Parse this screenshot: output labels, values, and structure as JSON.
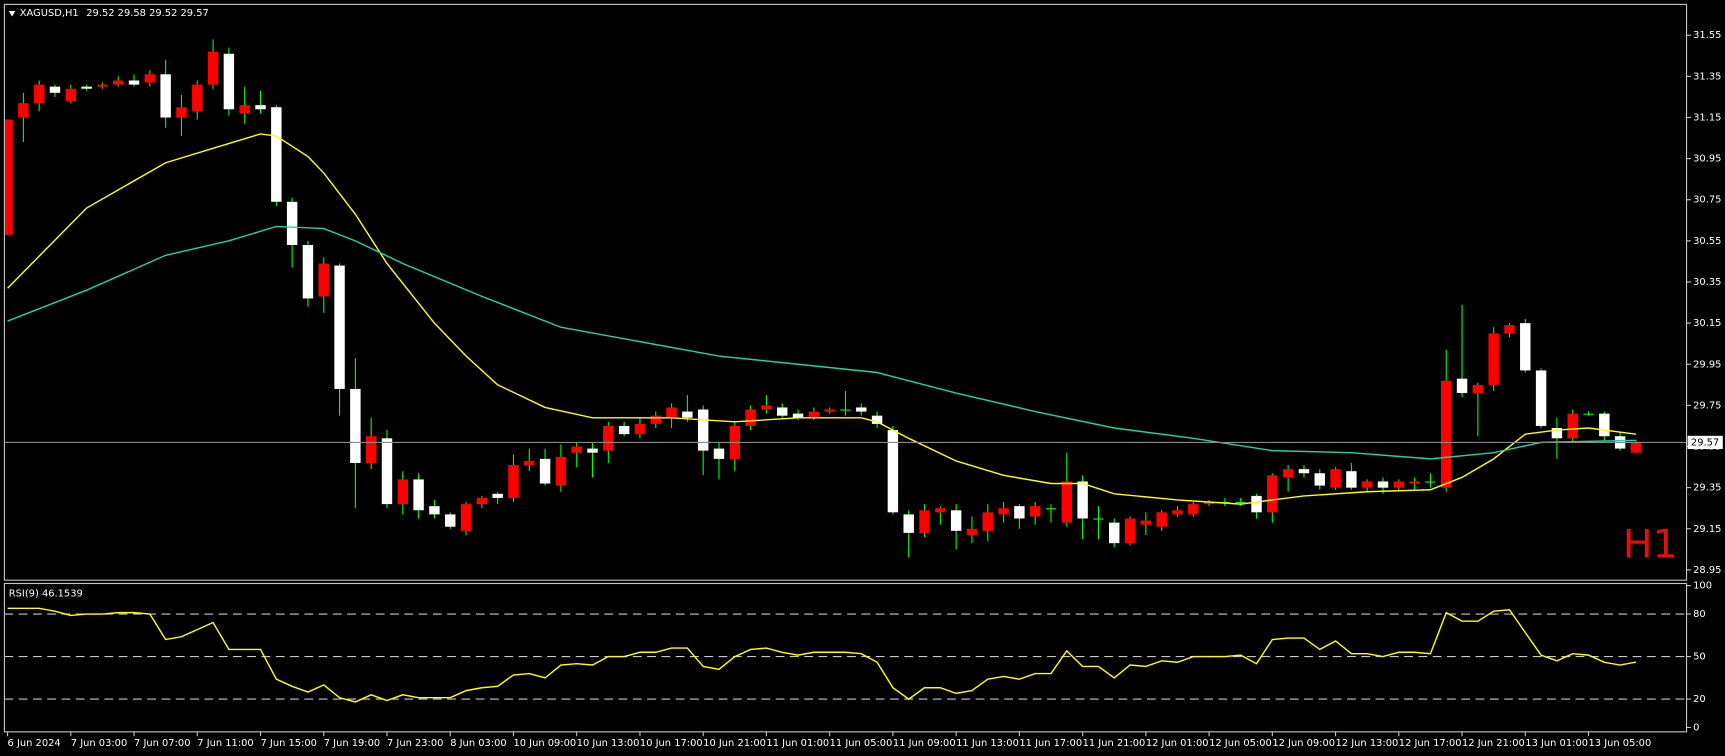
{
  "chart_data": {
    "type": "candlestick",
    "symbol": "XAGUSD,H1",
    "timeframe": "H1",
    "up_color": "#ff0000",
    "down_color": "#ffffff",
    "doji_color": "#00ff00",
    "wick_color": "#00ff00",
    "ylim": [
      28.9,
      31.7
    ],
    "yticks": [
      28.95,
      29.15,
      29.35,
      29.55,
      29.75,
      29.95,
      30.15,
      30.35,
      30.55,
      30.75,
      30.95,
      31.15,
      31.35,
      31.55
    ],
    "xlim": [
      -0.2,
      106.2
    ],
    "xticks": [
      {
        "value": 0,
        "label": "6 Jun 2024"
      },
      {
        "value": 4,
        "label": "7 Jun 03:00"
      },
      {
        "value": 8,
        "label": "7 Jun 07:00"
      },
      {
        "value": 12,
        "label": "7 Jun 11:00"
      },
      {
        "value": 16,
        "label": "7 Jun 15:00"
      },
      {
        "value": 20,
        "label": "7 Jun 19:00"
      },
      {
        "value": 24,
        "label": "7 Jun 23:00"
      },
      {
        "value": 28,
        "label": "8 Jun 03:00"
      },
      {
        "value": 32,
        "label": "10 Jun 09:00"
      },
      {
        "value": 36,
        "label": "10 Jun 13:00"
      },
      {
        "value": 40,
        "label": "10 Jun 17:00"
      },
      {
        "value": 44,
        "label": "10 Jun 21:00"
      },
      {
        "value": 48,
        "label": "11 Jun 01:00"
      },
      {
        "value": 52,
        "label": "11 Jun 05:00"
      },
      {
        "value": 56,
        "label": "11 Jun 09:00"
      },
      {
        "value": 60,
        "label": "11 Jun 13:00"
      },
      {
        "value": 64,
        "label": "11 Jun 17:00"
      },
      {
        "value": 68,
        "label": "11 Jun 21:00"
      },
      {
        "value": 72,
        "label": "12 Jun 01:00"
      },
      {
        "value": 76,
        "label": "12 Jun 05:00"
      },
      {
        "value": 80,
        "label": "12 Jun 09:00"
      },
      {
        "value": 84,
        "label": "12 Jun 13:00"
      },
      {
        "value": 88,
        "label": "12 Jun 17:00"
      },
      {
        "value": 92,
        "label": "12 Jun 21:00"
      },
      {
        "value": 96,
        "label": "13 Jun 01:00"
      },
      {
        "value": 100,
        "label": "13 Jun 05:00"
      }
    ],
    "ohlc": [
      [
        30.58,
        31.14,
        30.58,
        31.14
      ],
      [
        31.15,
        31.27,
        31.03,
        31.22
      ],
      [
        31.22,
        31.33,
        31.18,
        31.31
      ],
      [
        31.3,
        31.31,
        31.25,
        31.27
      ],
      [
        31.23,
        31.31,
        31.22,
        31.29
      ],
      [
        31.3,
        31.31,
        31.28,
        31.29
      ],
      [
        31.3,
        31.32,
        31.29,
        31.31
      ],
      [
        31.31,
        31.35,
        31.3,
        31.33
      ],
      [
        31.33,
        31.36,
        31.3,
        31.31
      ],
      [
        31.32,
        31.38,
        31.3,
        31.36
      ],
      [
        31.36,
        31.43,
        31.1,
        31.15
      ],
      [
        31.15,
        31.26,
        31.06,
        31.2
      ],
      [
        31.18,
        31.33,
        31.14,
        31.31
      ],
      [
        31.31,
        31.53,
        31.29,
        31.47
      ],
      [
        31.46,
        31.49,
        31.16,
        31.19
      ],
      [
        31.17,
        31.3,
        31.12,
        31.21
      ],
      [
        31.21,
        31.28,
        31.17,
        31.19
      ],
      [
        31.2,
        31.21,
        30.72,
        30.74
      ],
      [
        30.74,
        30.76,
        30.42,
        30.53
      ],
      [
        30.53,
        30.55,
        30.23,
        30.27
      ],
      [
        30.28,
        30.47,
        30.2,
        30.44
      ],
      [
        30.43,
        30.44,
        29.7,
        29.83
      ],
      [
        29.83,
        29.98,
        29.25,
        29.47
      ],
      [
        29.47,
        29.69,
        29.44,
        29.6
      ],
      [
        29.59,
        29.63,
        29.25,
        29.27
      ],
      [
        29.27,
        29.43,
        29.22,
        29.39
      ],
      [
        29.39,
        29.42,
        29.2,
        29.24
      ],
      [
        29.26,
        29.29,
        29.2,
        29.22
      ],
      [
        29.22,
        29.23,
        29.15,
        29.16
      ],
      [
        29.14,
        29.28,
        29.12,
        29.27
      ],
      [
        29.27,
        29.31,
        29.25,
        29.3
      ],
      [
        29.32,
        29.33,
        29.27,
        29.3
      ],
      [
        29.3,
        29.51,
        29.28,
        29.46
      ],
      [
        29.46,
        29.54,
        29.43,
        29.48
      ],
      [
        29.49,
        29.54,
        29.36,
        29.37
      ],
      [
        29.36,
        29.56,
        29.33,
        29.5
      ],
      [
        29.52,
        29.57,
        29.45,
        29.55
      ],
      [
        29.54,
        29.57,
        29.4,
        29.52
      ],
      [
        29.53,
        29.67,
        29.47,
        29.65
      ],
      [
        29.65,
        29.67,
        29.6,
        29.61
      ],
      [
        29.61,
        29.69,
        29.59,
        29.66
      ],
      [
        29.66,
        29.72,
        29.64,
        29.7
      ],
      [
        29.69,
        29.76,
        29.64,
        29.74
      ],
      [
        29.72,
        29.8,
        29.67,
        29.69
      ],
      [
        29.73,
        29.75,
        29.41,
        29.53
      ],
      [
        29.54,
        29.57,
        29.39,
        29.49
      ],
      [
        29.49,
        29.67,
        29.43,
        29.65
      ],
      [
        29.65,
        29.75,
        29.63,
        29.73
      ],
      [
        29.73,
        29.8,
        29.71,
        29.75
      ],
      [
        29.74,
        29.76,
        29.69,
        29.7
      ],
      [
        29.71,
        29.73,
        29.68,
        29.69
      ],
      [
        29.69,
        29.74,
        29.68,
        29.72
      ],
      [
        29.72,
        29.74,
        29.71,
        29.73
      ],
      [
        29.73,
        29.82,
        29.7,
        29.73
      ],
      [
        29.74,
        29.76,
        29.7,
        29.72
      ],
      [
        29.7,
        29.72,
        29.64,
        29.66
      ],
      [
        29.63,
        29.65,
        29.22,
        29.23
      ],
      [
        29.22,
        29.24,
        29.01,
        29.13
      ],
      [
        29.13,
        29.27,
        29.11,
        29.24
      ],
      [
        29.23,
        29.26,
        29.17,
        29.25
      ],
      [
        29.24,
        29.27,
        29.05,
        29.14
      ],
      [
        29.12,
        29.21,
        29.08,
        29.15
      ],
      [
        29.14,
        29.27,
        29.09,
        29.23
      ],
      [
        29.22,
        29.28,
        29.18,
        29.25
      ],
      [
        29.26,
        29.27,
        29.15,
        29.2
      ],
      [
        29.21,
        29.28,
        29.17,
        29.26
      ],
      [
        29.25,
        29.27,
        29.18,
        29.25
      ],
      [
        29.18,
        29.52,
        29.16,
        29.38
      ],
      [
        29.38,
        29.41,
        29.1,
        29.2
      ],
      [
        29.2,
        29.26,
        29.1,
        29.2
      ],
      [
        29.18,
        29.2,
        29.06,
        29.08
      ],
      [
        29.08,
        29.21,
        29.07,
        29.2
      ],
      [
        29.17,
        29.23,
        29.12,
        29.19
      ],
      [
        29.16,
        29.24,
        29.14,
        29.23
      ],
      [
        29.22,
        29.26,
        29.21,
        29.24
      ],
      [
        29.22,
        29.28,
        29.21,
        29.27
      ],
      [
        29.27,
        29.29,
        29.26,
        29.28
      ],
      [
        29.28,
        29.3,
        29.26,
        29.28
      ],
      [
        29.28,
        29.3,
        29.26,
        29.28
      ],
      [
        29.31,
        29.32,
        29.2,
        29.23
      ],
      [
        29.23,
        29.42,
        29.18,
        29.41
      ],
      [
        29.4,
        29.46,
        29.33,
        29.44
      ],
      [
        29.44,
        29.46,
        29.4,
        29.42
      ],
      [
        29.42,
        29.44,
        29.34,
        29.36
      ],
      [
        29.35,
        29.45,
        29.34,
        29.44
      ],
      [
        29.43,
        29.47,
        29.34,
        29.35
      ],
      [
        29.35,
        29.39,
        29.33,
        29.38
      ],
      [
        29.38,
        29.4,
        29.32,
        29.35
      ],
      [
        29.35,
        29.39,
        29.33,
        29.38
      ],
      [
        29.37,
        29.4,
        29.34,
        29.38
      ],
      [
        29.38,
        29.42,
        29.35,
        29.38
      ],
      [
        29.35,
        30.02,
        29.33,
        29.87
      ],
      [
        29.88,
        30.24,
        29.79,
        29.81
      ],
      [
        29.81,
        29.86,
        29.6,
        29.85
      ],
      [
        29.85,
        30.13,
        29.82,
        30.1
      ],
      [
        30.1,
        30.15,
        30.08,
        30.14
      ],
      [
        30.15,
        30.17,
        29.91,
        29.92
      ],
      [
        29.92,
        29.93,
        29.64,
        29.65
      ],
      [
        29.64,
        29.69,
        29.49,
        29.59
      ],
      [
        29.59,
        29.73,
        29.57,
        29.71
      ],
      [
        29.71,
        29.72,
        29.7,
        29.71
      ],
      [
        29.71,
        29.72,
        29.58,
        29.6
      ],
      [
        29.6,
        29.62,
        29.53,
        29.54
      ],
      [
        29.52,
        29.58,
        29.52,
        29.57
      ]
    ],
    "ma": [
      {
        "color": "#ffff00",
        "x": [
          0,
          5,
          10,
          13,
          16,
          17,
          19,
          20,
          22,
          24,
          27,
          29,
          31,
          34,
          37,
          42,
          46,
          50,
          54,
          55,
          57,
          60,
          63,
          66,
          68,
          70,
          74,
          78,
          80,
          82,
          86,
          90,
          92,
          94,
          96,
          98,
          100,
          103
        ],
        "values": [
          30.32,
          30.71,
          30.93,
          31.0,
          31.07,
          31.06,
          30.96,
          30.88,
          30.68,
          30.44,
          30.15,
          29.99,
          29.85,
          29.74,
          29.69,
          29.69,
          29.67,
          29.69,
          29.69,
          29.67,
          29.59,
          29.48,
          29.41,
          29.37,
          29.37,
          29.32,
          29.29,
          29.27,
          29.29,
          29.31,
          29.33,
          29.34,
          29.4,
          29.49,
          29.61,
          29.63,
          29.64,
          29.61
        ]
      },
      {
        "color": "#1fd3a8",
        "x": [
          0,
          5,
          10,
          14,
          17,
          20,
          22,
          25,
          30,
          35,
          40,
          45,
          50,
          55,
          60,
          65,
          70,
          75,
          80,
          85,
          90,
          94,
          97,
          103
        ],
        "values": [
          30.16,
          30.31,
          30.48,
          30.55,
          30.62,
          30.61,
          30.55,
          30.44,
          30.28,
          30.13,
          30.06,
          29.99,
          29.95,
          29.91,
          29.81,
          29.72,
          29.64,
          29.59,
          29.53,
          29.52,
          29.49,
          29.52,
          29.57,
          29.58
        ]
      }
    ],
    "rsi": {
      "label": "RSI(9)",
      "color": "#ffff00",
      "ylim": [
        0,
        100
      ],
      "yticks": [
        0,
        20,
        50,
        80,
        100
      ],
      "levels": [
        20,
        50,
        80
      ],
      "values": [
        84,
        84,
        84,
        82,
        79,
        80,
        80,
        81,
        81,
        80,
        62,
        64,
        69,
        74,
        55,
        55,
        55,
        34,
        29,
        25,
        30,
        21,
        18,
        23,
        19,
        23,
        21,
        21,
        21,
        26,
        28,
        29,
        37,
        38,
        35,
        44,
        45,
        44,
        50,
        50,
        53,
        53,
        56,
        56,
        43,
        41,
        50,
        55,
        56,
        53,
        51,
        53,
        53,
        53,
        52,
        46,
        28,
        20,
        28,
        28,
        24,
        26,
        34,
        36,
        34,
        38,
        38,
        54,
        43,
        43,
        35,
        44,
        43,
        47,
        46,
        50,
        50,
        50,
        51,
        45,
        62,
        63,
        63,
        55,
        61,
        52,
        52,
        50,
        53,
        53,
        52,
        81,
        75,
        75,
        82,
        83,
        67,
        51,
        47,
        52,
        51,
        46,
        44,
        46.1539
      ]
    }
  }
}
